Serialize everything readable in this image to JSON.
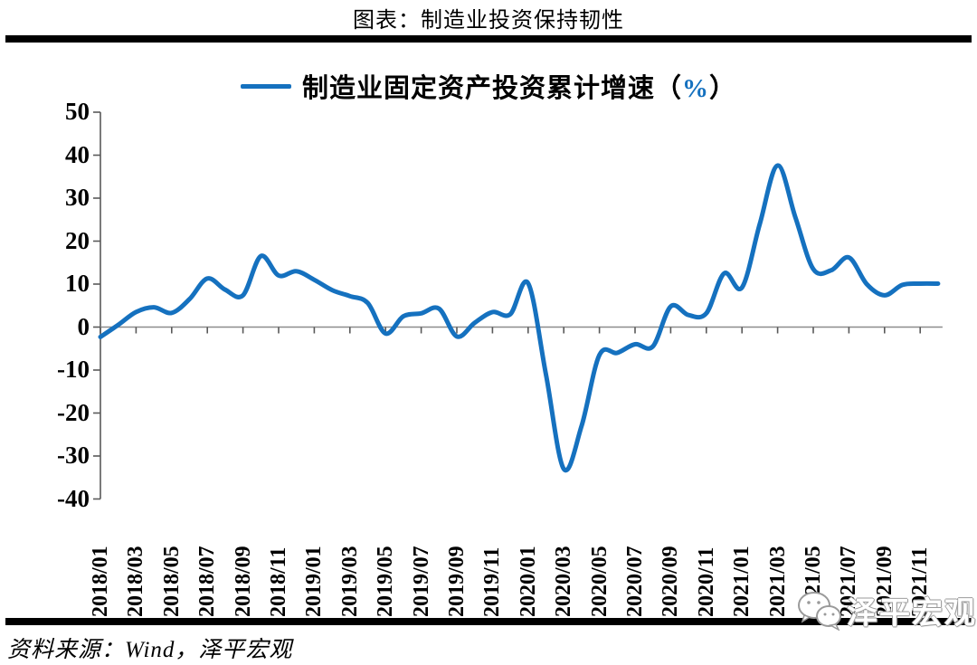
{
  "header": {
    "title": "图表：制造业投资保持韧性"
  },
  "legend": {
    "series_label_prefix": "制造业固定资产投资累计增速（",
    "percent_sign": "%",
    "series_label_suffix": "）"
  },
  "footer": {
    "source": "资料来源：Wind，泽平宏观",
    "watermark": "泽平宏观"
  },
  "colors": {
    "line": "#1571BF",
    "axis": "#595959",
    "zero_line": "#8C8C8C",
    "divider": "#000000",
    "text": "#000000",
    "watermark_gray": "#9A9A9A"
  },
  "chart_data": {
    "type": "line",
    "title": "图表：制造业投资保持韧性",
    "series": [
      {
        "name": "制造业固定资产投资累计增速（%）",
        "values": [
          -2.3,
          0.5,
          3.5,
          4.6,
          3.3,
          6.5,
          11.3,
          8.7,
          7.4,
          16.5,
          12.0,
          13.0,
          11.0,
          8.6,
          7.2,
          5.6,
          -1.5,
          2.5,
          3.2,
          4.3,
          -2.2,
          1.0,
          3.5,
          3.0,
          10.2,
          -11.0,
          -33.0,
          -23.0,
          -6.5,
          -6.0,
          -4.0,
          -4.5,
          4.8,
          2.8,
          3.2,
          12.5,
          9.2,
          24.0,
          37.6,
          25.5,
          13.5,
          13.2,
          16.2,
          10.0,
          7.4,
          9.8,
          10.1,
          10.1
        ]
      }
    ],
    "x": [
      "2018/01",
      "2018/02",
      "2018/03",
      "2018/04",
      "2018/05",
      "2018/06",
      "2018/07",
      "2018/08",
      "2018/09",
      "2018/10",
      "2018/11",
      "2018/12",
      "2019/01",
      "2019/02",
      "2019/03",
      "2019/04",
      "2019/05",
      "2019/06",
      "2019/07",
      "2019/08",
      "2019/09",
      "2019/10",
      "2019/11",
      "2019/12",
      "2020/01",
      "2020/02",
      "2020/03",
      "2020/04",
      "2020/05",
      "2020/06",
      "2020/07",
      "2020/08",
      "2020/09",
      "2020/10",
      "2020/11",
      "2020/12",
      "2021/01",
      "2021/02",
      "2021/03",
      "2021/04",
      "2021/05",
      "2021/06",
      "2021/07",
      "2021/08",
      "2021/09",
      "2021/10",
      "2021/11",
      "2021/12"
    ],
    "x_tick_labels": [
      "2018/01",
      "2018/03",
      "2018/05",
      "2018/07",
      "2018/09",
      "2018/11",
      "2019/01",
      "2019/03",
      "2019/05",
      "2019/07",
      "2019/09",
      "2019/11",
      "2020/01",
      "2020/03",
      "2020/05",
      "2020/07",
      "2020/09",
      "2020/11",
      "2021/01",
      "2021/03",
      "2021/05",
      "2021/07",
      "2021/09",
      "2021/11"
    ],
    "y_ticks": [
      50,
      40,
      30,
      20,
      10,
      0,
      -10,
      -20,
      -30,
      -40
    ],
    "ylim": [
      -40,
      50
    ],
    "xlabel": "",
    "ylabel": "",
    "grid": "zero-line-only",
    "legend_position": "top-center"
  }
}
